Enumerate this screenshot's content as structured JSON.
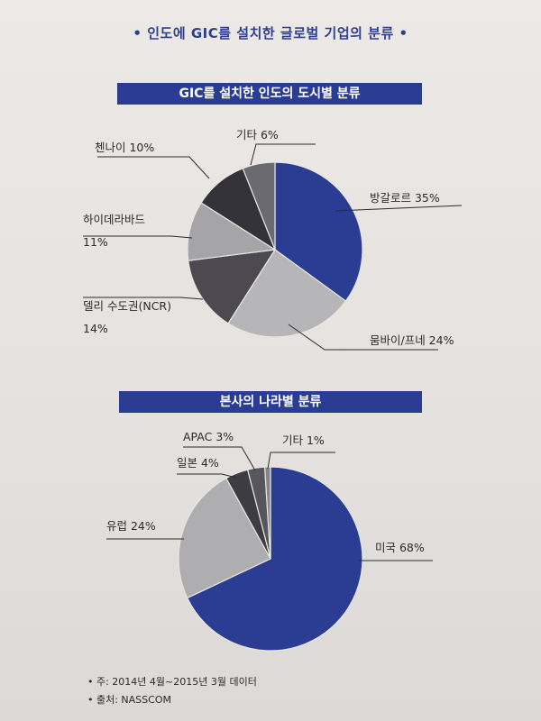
{
  "title": "• 인도에 GIC를 설치한 글로벌 기업의 분류 •",
  "chart_data": [
    {
      "type": "pie",
      "title": "GIC를 설치한 인도의 도시별 분류",
      "slices": [
        {
          "label": "방갈로르",
          "value": 35,
          "text": "방갈로르 35%",
          "color": "#2b3d93"
        },
        {
          "label": "뭄바이/프네",
          "value": 24,
          "text": "뭄바이/프네 24%",
          "color": "#b6b6b8"
        },
        {
          "label": "델리 수도권(NCR)",
          "value": 14,
          "text": [
            "델리 수도권(NCR)",
            "14%"
          ],
          "color": "#4c4a50"
        },
        {
          "label": "하이데라바드",
          "value": 11,
          "text": [
            "하이데라바드",
            "11%"
          ],
          "color": "#a5a5a8"
        },
        {
          "label": "첸나이",
          "value": 10,
          "text": "첸나이 10%",
          "color": "#333238"
        },
        {
          "label": "기타",
          "value": 6,
          "text": "기타 6%",
          "color": "#6b6a70"
        }
      ]
    },
    {
      "type": "pie",
      "title": "본사의 나라별 분류",
      "slices": [
        {
          "label": "미국",
          "value": 68,
          "text": "미국 68%",
          "color": "#2b3d93"
        },
        {
          "label": "유럽",
          "value": 24,
          "text": "유럽 24%",
          "color": "#aeaeb1"
        },
        {
          "label": "일본",
          "value": 4,
          "text": "일본 4%",
          "color": "#3d3c42"
        },
        {
          "label": "APAC",
          "value": 3,
          "text": "APAC 3%",
          "color": "#57565c"
        },
        {
          "label": "기타",
          "value": 1,
          "text": "기타 1%",
          "color": "#86858b"
        }
      ]
    }
  ],
  "footnotes": [
    "• 주: 2014년 4월~2015년 3월 데이터",
    "• 출처: NASSCOM"
  ]
}
